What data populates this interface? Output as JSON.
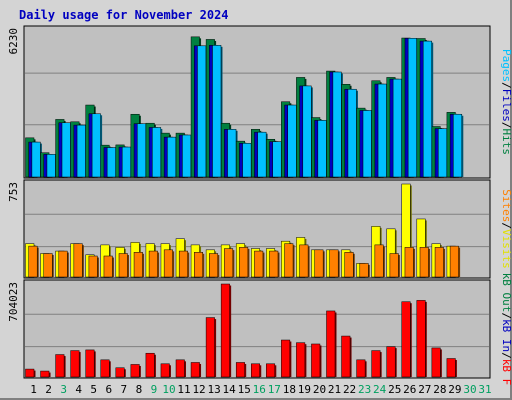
{
  "chart_data": {
    "type": "bar",
    "title": "Daily usage for November 2024",
    "categories": [
      "1",
      "2",
      "3",
      "4",
      "5",
      "6",
      "7",
      "8",
      "9",
      "10",
      "11",
      "12",
      "13",
      "14",
      "15",
      "16",
      "17",
      "18",
      "19",
      "20",
      "21",
      "22",
      "23",
      "24",
      "25",
      "26",
      "27",
      "28",
      "29",
      "30",
      "31"
    ],
    "weekend_days": [
      3,
      9,
      10,
      16,
      17,
      23,
      24,
      30,
      31
    ],
    "panels": [
      {
        "id": "hits-files-pages",
        "ymax_label": "6230",
        "ylim": [
          0,
          6230
        ],
        "series": [
          {
            "name": "Hits",
            "color": "#008040",
            "values": [
              1660,
              1030,
              2440,
              2340,
              3050,
              1350,
              1360,
              2660,
              2280,
              1860,
              1860,
              5940,
              5830,
              2280,
              1520,
              2020,
              1600,
              3190,
              4220,
              2520,
              4490,
              3930,
              2920,
              4080,
              4220,
              5890,
              5870,
              2140,
              2740,
              0,
              0
            ]
          },
          {
            "name": "Files",
            "color": "#0000c0",
            "values": [
              1480,
              960,
              2300,
              2200,
              2680,
              1250,
              1270,
              2260,
              2100,
              1690,
              1780,
              5560,
              5580,
              2020,
              1430,
              1900,
              1500,
              3050,
              3860,
              2400,
              4450,
              3720,
              2820,
              3940,
              4150,
              5880,
              5760,
              2050,
              2660,
              0,
              0
            ]
          },
          {
            "name": "Pages",
            "color": "#00c0ff",
            "values": [
              1480,
              960,
              2300,
              2200,
              2680,
              1250,
              1270,
              2260,
              2100,
              1690,
              1780,
              5560,
              5580,
              2020,
              1430,
              1900,
              1500,
              3050,
              3860,
              2400,
              4450,
              3720,
              2820,
              3940,
              4150,
              5880,
              5760,
              2050,
              2660,
              0,
              0
            ]
          }
        ]
      },
      {
        "id": "visits-sites",
        "ymax_label": "753",
        "ylim": [
          0,
          753
        ],
        "series": [
          {
            "name": "Visits",
            "color": "#ffff00",
            "values": [
              270,
              190,
              210,
              270,
              180,
              260,
              240,
              280,
              270,
              270,
              310,
              260,
              220,
              260,
              270,
              230,
              230,
              290,
              320,
              220,
              220,
              220,
              110,
              410,
              390,
              753,
              470,
              270,
              250,
              0,
              0
            ]
          },
          {
            "name": "Sites",
            "color": "#ff8000",
            "values": [
              250,
              190,
              210,
              270,
              170,
              170,
              190,
              200,
              210,
              220,
              210,
              200,
              190,
              230,
              240,
              210,
              210,
              270,
              260,
              220,
              220,
              200,
              110,
              260,
              190,
              240,
              240,
              240,
              250,
              0,
              0
            ]
          }
        ]
      },
      {
        "id": "kb",
        "ymax_label": "704023",
        "ylim": [
          0,
          704023
        ],
        "series": [
          {
            "name": "kB F",
            "color": "#ff0000",
            "values": [
              60000,
              45000,
              170000,
              200000,
              205000,
              130000,
              70000,
              95000,
              180000,
              100000,
              130000,
              110000,
              450000,
              704023,
              110000,
              100000,
              100000,
              280000,
              260000,
              250000,
              500000,
              310000,
              130000,
              200000,
              230000,
              570000,
              580000,
              220000,
              140000,
              0,
              0
            ]
          },
          {
            "name": "kB In",
            "color": "#0000c0",
            "values": [
              0,
              0,
              0,
              0,
              0,
              0,
              0,
              0,
              0,
              0,
              0,
              0,
              0,
              0,
              0,
              0,
              0,
              0,
              0,
              0,
              0,
              0,
              0,
              0,
              0,
              0,
              0,
              0,
              0,
              0,
              0
            ]
          },
          {
            "name": "kB Out",
            "color": "#008040",
            "values": [
              0,
              0,
              0,
              0,
              0,
              0,
              0,
              0,
              0,
              0,
              0,
              0,
              0,
              0,
              0,
              0,
              0,
              0,
              0,
              0,
              0,
              0,
              0,
              0,
              0,
              0,
              0,
              0,
              0,
              0,
              0
            ]
          }
        ]
      }
    ]
  }
}
